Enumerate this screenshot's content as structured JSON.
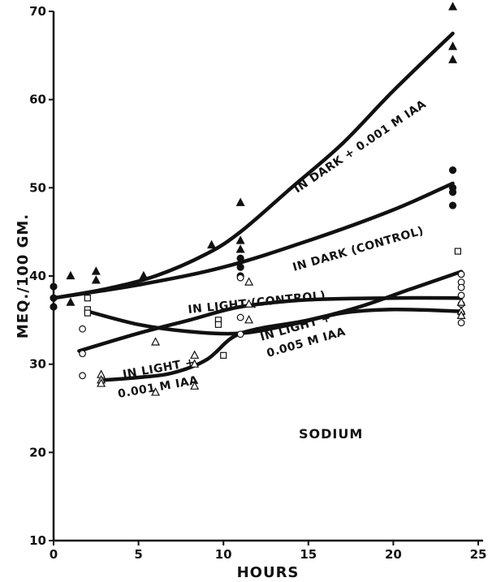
{
  "chart_data": {
    "type": "line",
    "xlabel": "HOURS",
    "ylabel": "MEQ./100 GM.",
    "xlim": [
      0,
      25
    ],
    "ylim": [
      10,
      70
    ],
    "xticks": [
      0,
      5,
      10,
      15,
      20,
      25
    ],
    "yticks": [
      10,
      20,
      30,
      40,
      50,
      60,
      70
    ],
    "grid": false,
    "annotation": "SODIUM",
    "series": [
      {
        "name": "IN DARK + 0.001 M IAA",
        "marker": "filled-triangle",
        "curve": [
          [
            0,
            37.5
          ],
          [
            3,
            38.5
          ],
          [
            6,
            40
          ],
          [
            9,
            42.5
          ],
          [
            11,
            45
          ],
          [
            14,
            50
          ],
          [
            17,
            55
          ],
          [
            20,
            61
          ],
          [
            23.5,
            67.5
          ]
        ],
        "points": [
          [
            1,
            40
          ],
          [
            1,
            37
          ],
          [
            2.5,
            40.5
          ],
          [
            2.5,
            39.5
          ],
          [
            5.3,
            40
          ],
          [
            9.3,
            43.5
          ],
          [
            11,
            48.3
          ],
          [
            11,
            44
          ],
          [
            11,
            43
          ],
          [
            23.5,
            70.5
          ],
          [
            23.5,
            66
          ],
          [
            23.5,
            64.5
          ]
        ]
      },
      {
        "name": "IN DARK (CONTROL)",
        "marker": "filled-circle",
        "curve": [
          [
            0,
            37.5
          ],
          [
            5,
            39
          ],
          [
            10,
            41
          ],
          [
            15,
            44
          ],
          [
            20,
            47.5
          ],
          [
            23.5,
            50.5
          ]
        ],
        "points": [
          [
            0,
            38.8
          ],
          [
            0,
            37.5
          ],
          [
            0,
            36.5
          ],
          [
            11,
            42
          ],
          [
            11,
            41
          ],
          [
            11,
            40
          ],
          [
            23.5,
            52
          ],
          [
            23.5,
            50
          ],
          [
            23.5,
            49.5
          ],
          [
            23.5,
            48
          ]
        ]
      },
      {
        "name": "IN LIGHT (CONTROL)",
        "marker": "open-circle",
        "curve": [
          [
            1.5,
            31.5
          ],
          [
            5,
            33.5
          ],
          [
            8,
            35
          ],
          [
            11,
            36.5
          ],
          [
            15,
            37.3
          ],
          [
            20,
            37.5
          ],
          [
            24,
            37.5
          ]
        ],
        "points": [
          [
            1.7,
            34
          ],
          [
            1.7,
            31.2
          ],
          [
            1.7,
            28.7
          ],
          [
            11,
            39.8
          ],
          [
            11,
            35.3
          ],
          [
            11,
            33.4
          ],
          [
            24,
            40.2
          ],
          [
            24,
            39.3
          ],
          [
            24,
            38.7
          ],
          [
            24,
            37.8
          ],
          [
            24,
            36.8
          ],
          [
            24,
            35.8
          ],
          [
            24,
            34.7
          ]
        ]
      },
      {
        "name": "IN LIGHT + 0.005 M IAA",
        "marker": "open-square",
        "curve": [
          [
            2,
            36
          ],
          [
            5,
            34.5
          ],
          [
            8,
            33.7
          ],
          [
            11,
            33.5
          ],
          [
            14,
            34.5
          ],
          [
            17,
            35.8
          ],
          [
            20,
            36.2
          ],
          [
            24,
            36
          ]
        ],
        "points": [
          [
            2,
            37.5
          ],
          [
            2,
            36.2
          ],
          [
            2,
            35.8
          ],
          [
            9.7,
            35
          ],
          [
            9.7,
            34.5
          ],
          [
            10,
            31
          ],
          [
            23.8,
            42.8
          ]
        ]
      },
      {
        "name": "IN LIGHT + 0.001 M IAA",
        "marker": "open-triangle",
        "curve": [
          [
            3,
            28.2
          ],
          [
            5,
            28.5
          ],
          [
            7,
            29
          ],
          [
            9,
            30.5
          ],
          [
            10.5,
            33
          ],
          [
            12,
            34
          ],
          [
            15,
            35
          ],
          [
            18,
            36.5
          ],
          [
            21,
            38.5
          ],
          [
            24,
            40.5
          ]
        ],
        "points": [
          [
            2.8,
            28.8
          ],
          [
            2.8,
            28.2
          ],
          [
            2.8,
            27.8
          ],
          [
            6,
            32.5
          ],
          [
            6,
            26.8
          ],
          [
            8.3,
            31
          ],
          [
            8.3,
            30
          ],
          [
            8.3,
            27.5
          ],
          [
            11.5,
            39.3
          ],
          [
            11.5,
            36.8
          ],
          [
            11.5,
            35
          ],
          [
            24,
            37
          ],
          [
            24,
            36
          ],
          [
            24,
            35.5
          ]
        ]
      }
    ],
    "curve_labels": [
      "IN DARK + 0.001 M IAA",
      "IN DARK (CONTROL)",
      "IN LIGHT (CONTROL)",
      "IN LIGHT +",
      "0.005 M IAA",
      "IN LIGHT +",
      "0.001 M IAA"
    ]
  }
}
